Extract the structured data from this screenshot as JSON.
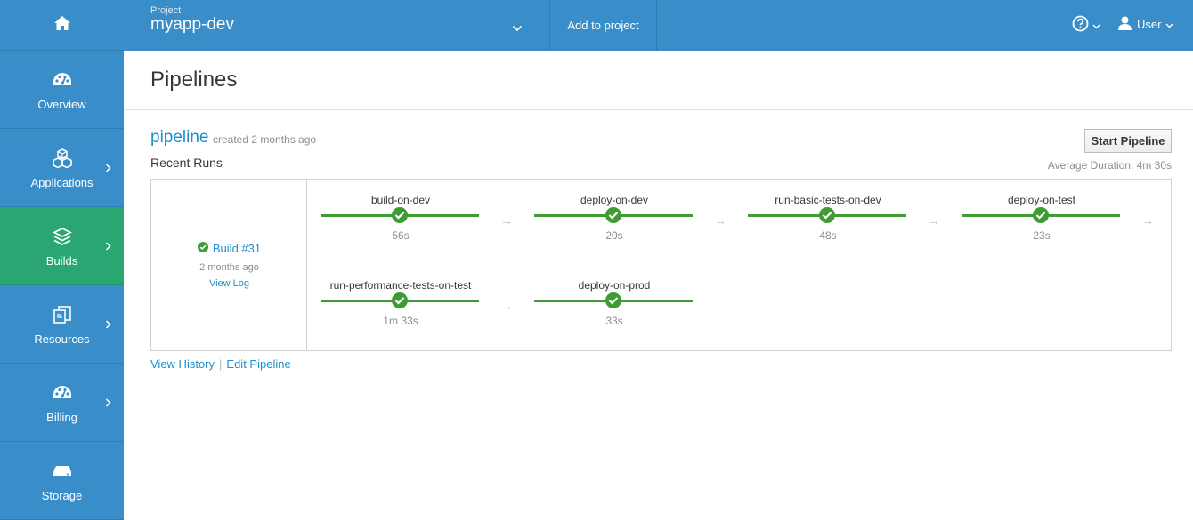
{
  "nav": {
    "items": [
      {
        "label": "Overview",
        "icon": "dashboard-icon"
      },
      {
        "label": "Applications",
        "icon": "cubes-icon"
      },
      {
        "label": "Builds",
        "icon": "layers-icon"
      },
      {
        "label": "Resources",
        "icon": "files-icon"
      },
      {
        "label": "Billing",
        "icon": "dashboard-icon"
      },
      {
        "label": "Storage",
        "icon": "drive-icon"
      }
    ],
    "active": "Builds"
  },
  "topbar": {
    "project_label": "Project",
    "project_name": "myapp-dev",
    "add_to_project": "Add to project",
    "user": "User"
  },
  "page": {
    "title": "Pipelines"
  },
  "pipeline": {
    "name": "pipeline",
    "created": "created 2 months ago",
    "recent_runs": "Recent Runs",
    "start_label": "Start Pipeline",
    "avg_duration": "Average Duration: 4m 30s",
    "build": {
      "label": "Build #31",
      "time": "2 months ago",
      "view_log": "View Log"
    },
    "stages": [
      {
        "name": "build-on-dev",
        "duration": "56s",
        "status": "complete"
      },
      {
        "name": "deploy-on-dev",
        "duration": "20s",
        "status": "complete"
      },
      {
        "name": "run-basic-tests-on-dev",
        "duration": "48s",
        "status": "complete"
      },
      {
        "name": "deploy-on-test",
        "duration": "23s",
        "status": "complete"
      },
      {
        "name": "run-performance-tests-on-test",
        "duration": "1m 33s",
        "status": "complete"
      },
      {
        "name": "deploy-on-prod",
        "duration": "33s",
        "status": "complete"
      }
    ],
    "view_history": "View History",
    "edit_pipeline": "Edit Pipeline"
  },
  "colors": {
    "nav_bg": "#398ec9",
    "active_nav": "#2aa673",
    "success": "#3f9c35",
    "link": "#1a8fd1"
  }
}
